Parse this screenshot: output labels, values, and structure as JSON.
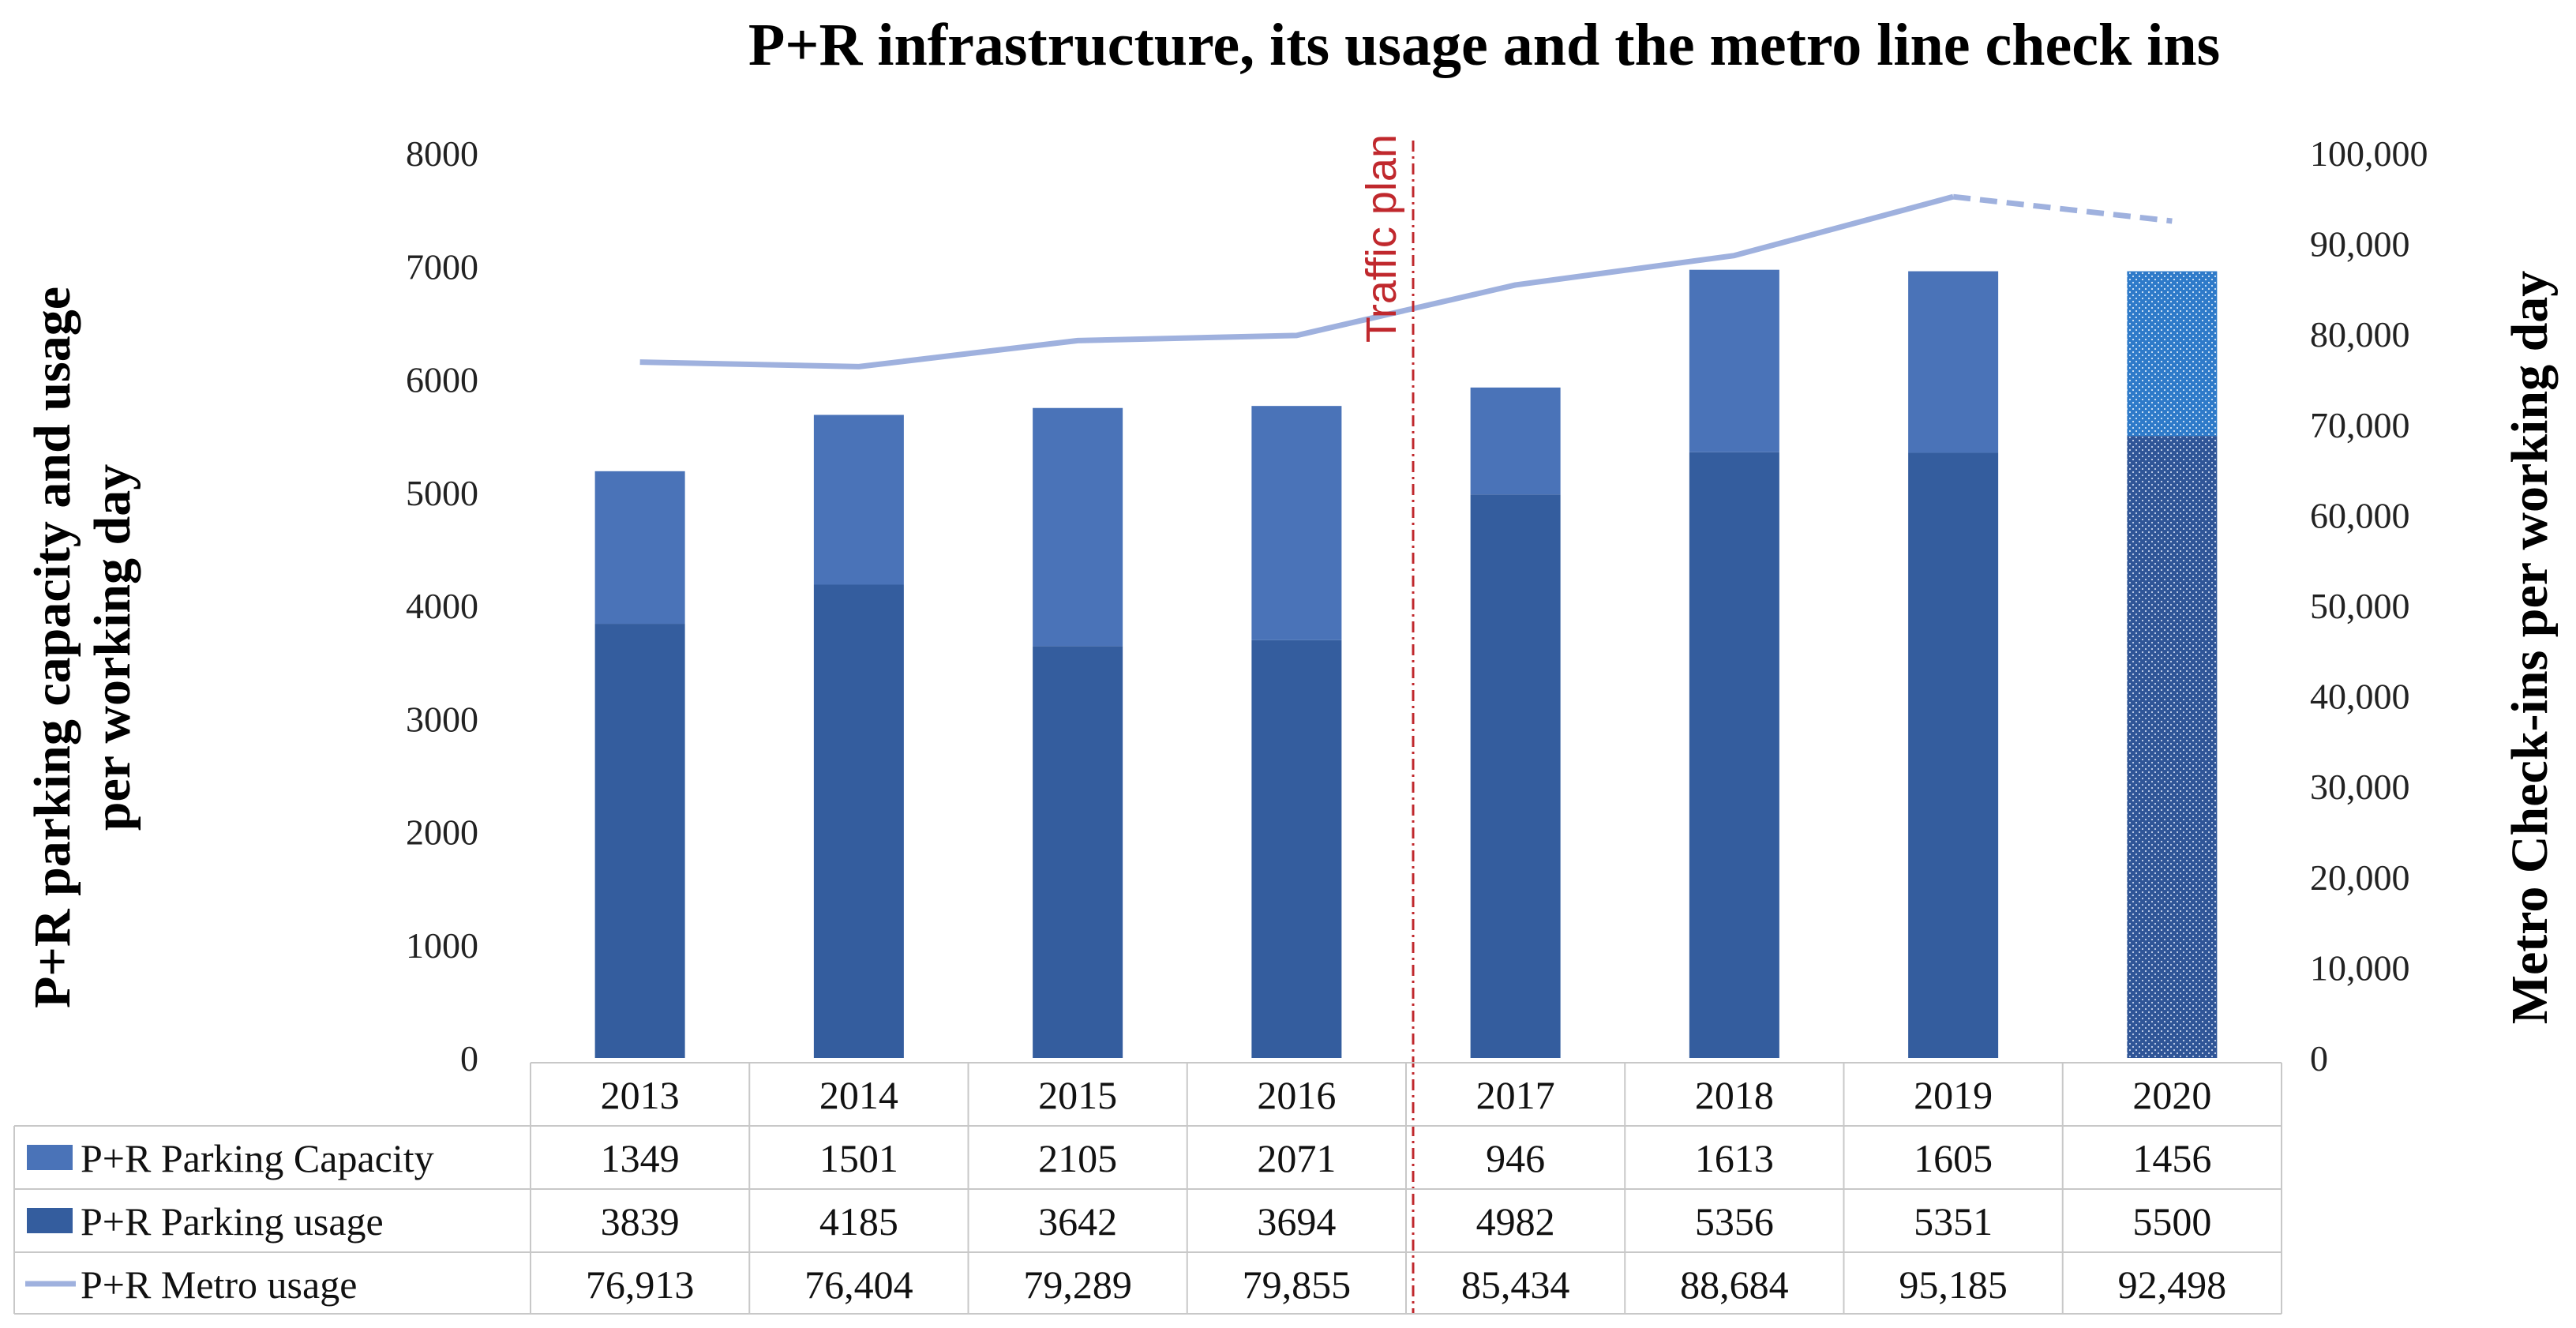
{
  "chart_data": {
    "type": "bar",
    "title": "P+R infrastructure, its usage and the metro line check ins",
    "ylabel": "P+R parking capacity and usage per working day",
    "y2label": "Metro Check-ins per working day",
    "categories": [
      "2013",
      "2014",
      "2015",
      "2016",
      "2017",
      "2018",
      "2019",
      "2020"
    ],
    "ylim": [
      0,
      8000
    ],
    "y2lim": [
      0,
      100000
    ],
    "yticks": [
      "0",
      "1000",
      "2000",
      "3000",
      "4000",
      "5000",
      "6000",
      "7000",
      "8000"
    ],
    "y2ticks": [
      "0",
      "10,000",
      "20,000",
      "30,000",
      "40,000",
      "50,000",
      "60,000",
      "70,000",
      "80,000",
      "90,000",
      "100,000"
    ],
    "stacked": true,
    "series": [
      {
        "name": "P+R Parking usage",
        "kind": "bar",
        "color": "#345d9e",
        "values": [
          3839,
          4185,
          3642,
          3694,
          4982,
          5356,
          5351,
          5500
        ],
        "labels": [
          "3839",
          "4185",
          "3642",
          "3694",
          "4982",
          "5356",
          "5351",
          "5500"
        ]
      },
      {
        "name": "P+R Parking Capacity",
        "kind": "bar",
        "color": "#4a73b8",
        "values": [
          1349,
          1501,
          2105,
          2071,
          946,
          1613,
          1605,
          1456
        ],
        "labels": [
          "1349",
          "1501",
          "2105",
          "2071",
          "946",
          "1613",
          "1605",
          "1456"
        ]
      },
      {
        "name": "P+R Metro usage",
        "kind": "line",
        "axis": "y2",
        "color": "#9fb1de",
        "values": [
          76913,
          76404,
          79289,
          79855,
          85434,
          88684,
          95185,
          92498
        ],
        "labels": [
          "76,913",
          "76,404",
          "79,289",
          "79,855",
          "85,434",
          "88,684",
          "95,185",
          "92,498"
        ],
        "dashed_last_segment": true
      }
    ],
    "projected_category": "2020",
    "annotation": {
      "text": "Traffic plan",
      "between": [
        "2016",
        "2017"
      ],
      "color": "#c0282d",
      "style": "dash-dot vertical line"
    },
    "grid": false,
    "legend": "data table below chart"
  }
}
